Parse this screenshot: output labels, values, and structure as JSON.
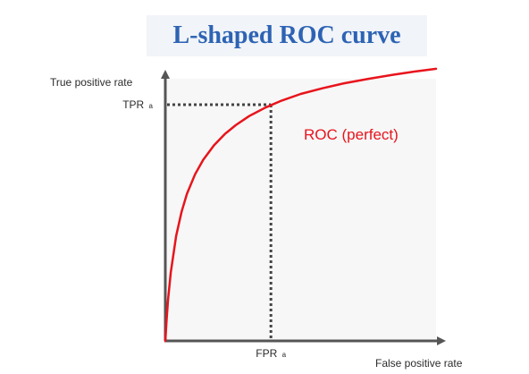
{
  "chart_data": {
    "type": "line",
    "title": "L-shaped ROC curve",
    "xlabel": "False positive rate",
    "ylabel": "True positive rate",
    "xlim": [
      0,
      1
    ],
    "ylim": [
      0,
      1
    ],
    "grid": false,
    "series": [
      {
        "name": "ROC (perfect)",
        "color": "#e8141c",
        "x": [
          0,
          0.005,
          0.01,
          0.02,
          0.04,
          0.06,
          0.08,
          0.11,
          0.14,
          0.18,
          0.22,
          0.26,
          0.31,
          0.37,
          0.43,
          0.5,
          0.58,
          0.66,
          0.75,
          0.84,
          0.92,
          1.0
        ],
        "y": [
          0,
          0.069,
          0.129,
          0.217,
          0.333,
          0.41,
          0.467,
          0.529,
          0.575,
          0.621,
          0.657,
          0.685,
          0.714,
          0.741,
          0.763,
          0.784,
          0.802,
          0.818,
          0.832,
          0.845,
          0.855,
          0.864
        ]
      }
    ],
    "annotations": [
      {
        "kind": "reference-point",
        "x": 0.39,
        "y": 0.75,
        "x_label_main": "FPR",
        "x_label_sub": "a",
        "y_label_main": "TPR",
        "y_label_sub": "a"
      }
    ],
    "colors": {
      "curve": "#e8141c",
      "axes": "#555555",
      "plot_background": "#f7f7f7",
      "reference_lines": "#444444",
      "title": "#2d63b4"
    }
  }
}
